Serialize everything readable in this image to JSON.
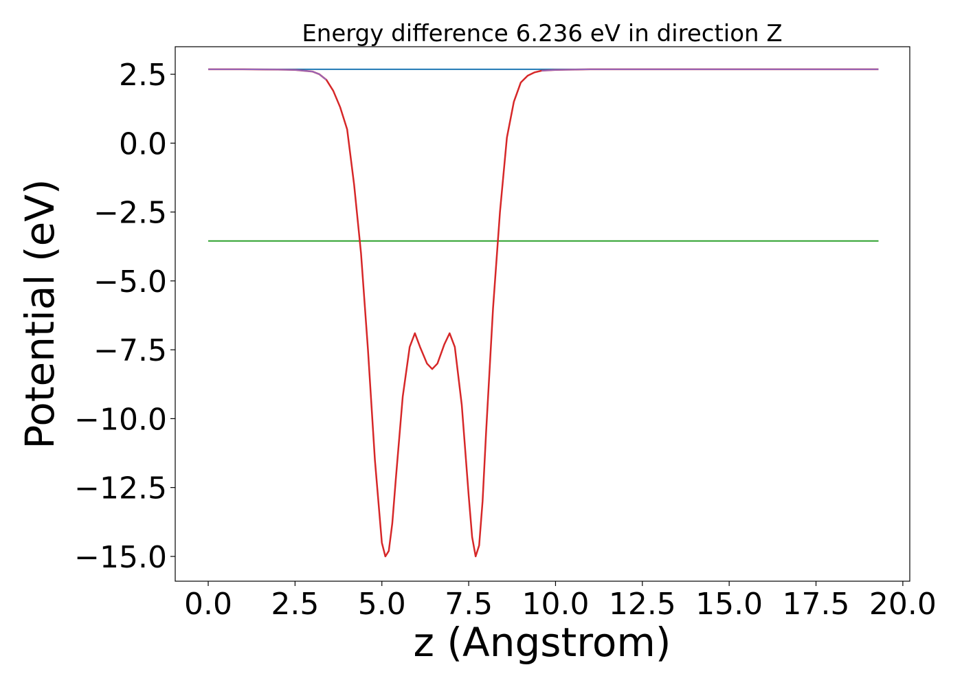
{
  "chart_data": {
    "type": "line",
    "title": "Energy difference 6.236 eV in direction Z",
    "xlabel": "z (Angstrom)",
    "ylabel": "Potential (eV)",
    "xlim": [
      -0.95,
      20.2
    ],
    "ylim": [
      -15.9,
      3.5
    ],
    "x_ticks": [
      0.0,
      2.5,
      5.0,
      7.5,
      10.0,
      12.5,
      15.0,
      17.5,
      20.0
    ],
    "x_tick_labels": [
      "0.0",
      "2.5",
      "5.0",
      "7.5",
      "10.0",
      "12.5",
      "15.0",
      "17.5",
      "20.0"
    ],
    "y_ticks": [
      2.5,
      0.0,
      -2.5,
      -5.0,
      -7.5,
      -10.0,
      -12.5,
      -15.0
    ],
    "y_tick_labels": [
      "2.5",
      "0.0",
      "−2.5",
      "−5.0",
      "−7.5",
      "−10.0",
      "−12.5",
      "−15.0"
    ],
    "grid": false,
    "series": [
      {
        "color": "#1f77b4",
        "x": [
          0.0,
          19.3
        ],
        "values": [
          2.68,
          2.68
        ]
      },
      {
        "color": "#2ca02c",
        "x": [
          0.0,
          19.3
        ],
        "values": [
          -3.55,
          -3.55
        ]
      },
      {
        "color": "#d62728",
        "x": [
          0.0,
          1.0,
          2.0,
          2.5,
          3.0,
          3.2,
          3.4,
          3.6,
          3.8,
          4.0,
          4.2,
          4.4,
          4.6,
          4.8,
          5.0,
          5.1,
          5.2,
          5.3,
          5.4,
          5.6,
          5.8,
          5.95,
          6.1,
          6.3,
          6.45,
          6.6,
          6.8,
          6.95,
          7.1,
          7.3,
          7.5,
          7.6,
          7.7,
          7.8,
          7.9,
          8.0,
          8.2,
          8.4,
          8.6,
          8.8,
          9.0,
          9.2,
          9.4,
          9.6,
          10.0,
          11.0,
          12.0,
          14.0,
          16.0,
          19.3
        ],
        "values": [
          2.68,
          2.68,
          2.67,
          2.66,
          2.6,
          2.5,
          2.3,
          1.9,
          1.3,
          0.5,
          -1.5,
          -4.0,
          -7.5,
          -11.5,
          -14.5,
          -15.0,
          -14.8,
          -13.8,
          -12.2,
          -9.2,
          -7.4,
          -6.9,
          -7.4,
          -8.0,
          -8.2,
          -8.0,
          -7.3,
          -6.9,
          -7.4,
          -9.5,
          -12.8,
          -14.3,
          -15.0,
          -14.6,
          -13.0,
          -10.5,
          -6.0,
          -2.5,
          0.2,
          1.5,
          2.2,
          2.45,
          2.57,
          2.63,
          2.66,
          2.68,
          2.68,
          2.68,
          2.68,
          2.68
        ]
      },
      {
        "color": "#9467bd",
        "x": [
          0.0,
          1.0,
          2.0,
          2.5,
          3.0,
          3.2,
          3.4,
          9.6,
          10.0,
          11.0,
          12.0,
          14.0,
          16.0,
          19.3
        ],
        "values": [
          2.68,
          2.68,
          2.67,
          2.66,
          2.6,
          2.5,
          2.3,
          2.63,
          2.66,
          2.68,
          2.68,
          2.68,
          2.68,
          2.68
        ],
        "segments": [
          [
            0,
            6
          ],
          [
            7,
            13
          ]
        ]
      }
    ]
  }
}
